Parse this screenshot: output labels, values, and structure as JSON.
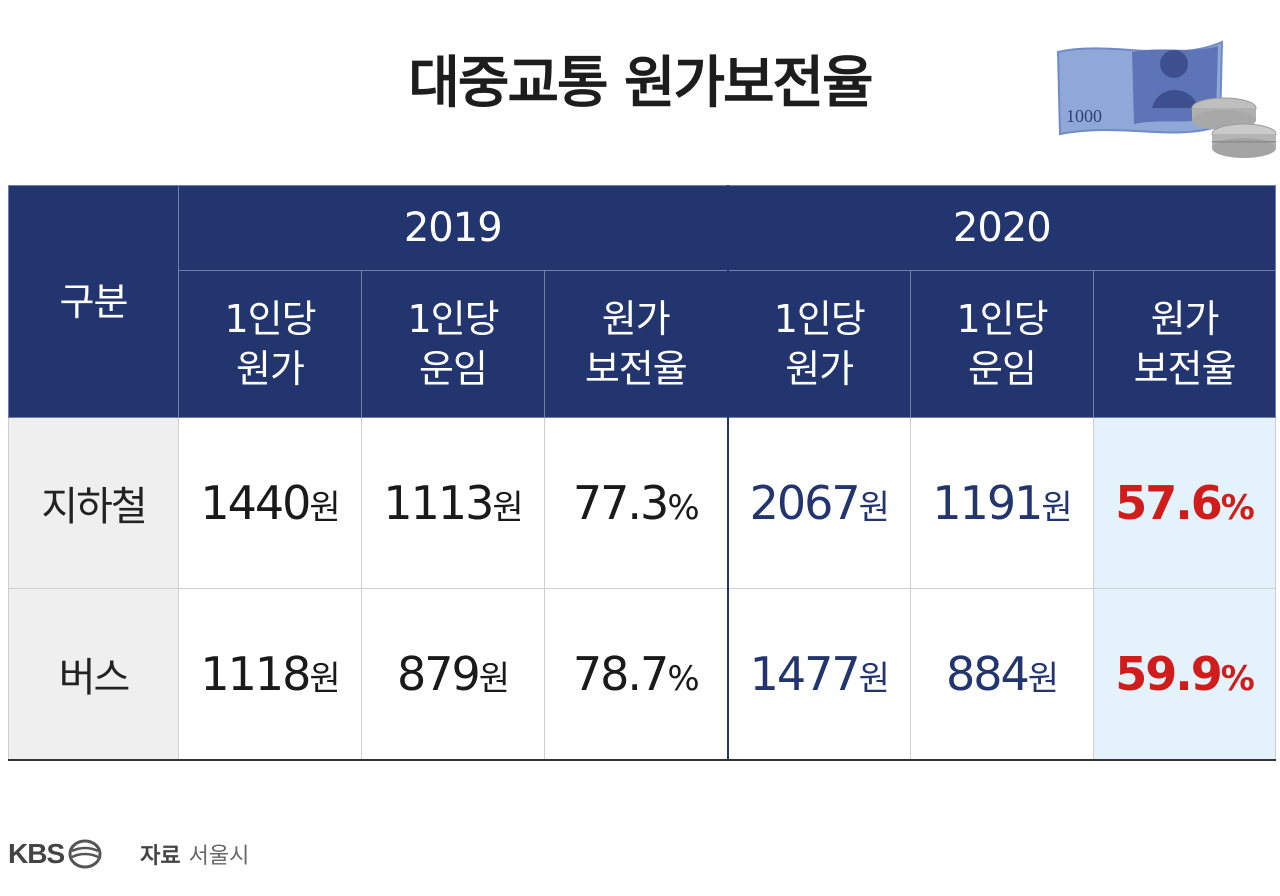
{
  "title": "대중교통 원가보전율",
  "chart_data": {
    "type": "table",
    "row_header_label": "구분",
    "years": [
      "2019",
      "2020"
    ],
    "sub_columns": [
      "1인당\n원가",
      "1인당\n운임",
      "원가\n보전율"
    ],
    "rows": [
      {
        "name": "지하철",
        "y2019": {
          "cost": "1440",
          "fare": "1113",
          "ratio": "77.3"
        },
        "y2020": {
          "cost": "2067",
          "fare": "1191",
          "ratio": "57.6"
        }
      },
      {
        "name": "버스",
        "y2019": {
          "cost": "1118",
          "fare": "879",
          "ratio": "78.7"
        },
        "y2020": {
          "cost": "1477",
          "fare": "884",
          "ratio": "59.9"
        }
      }
    ],
    "won_unit": "원",
    "pct_unit": "%"
  },
  "banknote_value": "1000",
  "footer": {
    "logo": "KBS",
    "source_label": "자료",
    "source_value": "서울시"
  },
  "colors": {
    "header_bg": "#22356e",
    "highlight_text": "#d11c1c",
    "highlight_bg": "#e4f3fb",
    "value_2020": "#22356e"
  }
}
